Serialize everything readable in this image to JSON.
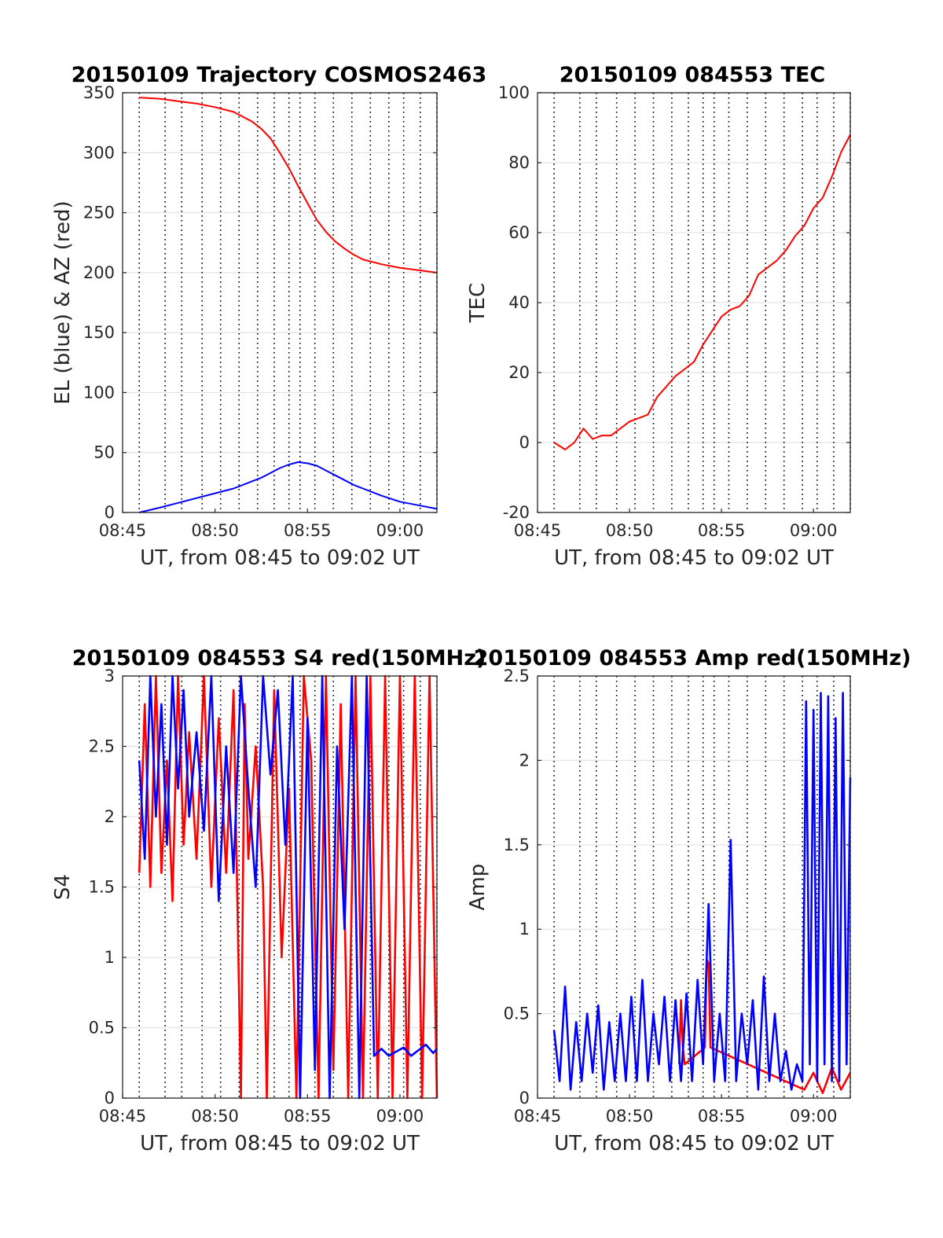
{
  "chart_data": [
    {
      "type": "line",
      "title": "20150109 Trajectory COSMOS2463",
      "xlabel": "UT, from 08:45 to 09:02 UT",
      "ylabel": "EL (blue) & AZ (red)",
      "x_tick_labels": [
        "08:45",
        "08:50",
        "08:55",
        "09:00"
      ],
      "x_ticks_min": [
        0,
        5,
        10,
        15
      ],
      "xlim_min": [
        0,
        17
      ],
      "ylim": [
        0,
        350
      ],
      "y_ticks": [
        0,
        50,
        100,
        150,
        200,
        250,
        300,
        350
      ],
      "vertical_dotted_lines_min": [
        0.9,
        2.3,
        3.2,
        4.3,
        5.3,
        6.3,
        7.3,
        8.2,
        9.0,
        9.6,
        10.4,
        11.4,
        12.4,
        13.4,
        14.4,
        15.2,
        16.1,
        17.0
      ],
      "series": [
        {
          "color": "#ff0000",
          "x_min": [
            0.9,
            2.0,
            3.0,
            4.0,
            5.0,
            6.0,
            7.0,
            7.5,
            8.0,
            8.5,
            9.0,
            9.5,
            10.0,
            10.5,
            11.0,
            11.5,
            12.0,
            12.5,
            13.0,
            14.0,
            15.0,
            16.0,
            17.0
          ],
          "values": [
            346,
            345,
            343,
            341,
            338,
            334,
            326,
            320,
            312,
            300,
            287,
            272,
            258,
            244,
            234,
            226,
            220,
            215,
            211,
            207,
            204,
            202,
            200
          ]
        },
        {
          "color": "#0000ff",
          "x_min": [
            0.9,
            2.0,
            3.0,
            4.0,
            5.0,
            6.0,
            7.0,
            7.5,
            8.0,
            8.5,
            9.0,
            9.5,
            10.0,
            10.5,
            11.0,
            11.5,
            12.0,
            12.5,
            13.0,
            14.0,
            15.0,
            16.0,
            17.0
          ],
          "values": [
            0,
            4,
            8,
            12,
            16,
            20,
            26,
            29,
            33,
            37,
            40,
            42,
            41,
            39,
            35,
            31,
            27,
            23,
            20,
            14,
            9,
            6,
            3
          ]
        }
      ]
    },
    {
      "type": "line",
      "title": "20150109 084553 TEC",
      "xlabel": "UT, from 08:45 to 09:02 UT",
      "ylabel": "TEC",
      "x_tick_labels": [
        "08:45",
        "08:50",
        "08:55",
        "09:00"
      ],
      "x_ticks_min": [
        0,
        5,
        10,
        15
      ],
      "xlim_min": [
        0,
        17
      ],
      "ylim": [
        -20,
        100
      ],
      "y_ticks": [
        -20,
        0,
        20,
        40,
        60,
        80,
        100
      ],
      "vertical_dotted_lines_min": [
        0.9,
        2.3,
        3.2,
        4.3,
        5.3,
        6.3,
        7.3,
        8.2,
        9.0,
        9.6,
        10.4,
        11.4,
        12.4,
        13.4,
        14.4,
        15.2,
        16.1,
        17.0
      ],
      "series": [
        {
          "color": "#ff0000",
          "x_min": [
            0.9,
            1.5,
            2.0,
            2.5,
            3.0,
            3.5,
            4.0,
            4.5,
            5.0,
            5.5,
            6.0,
            6.5,
            7.0,
            7.5,
            8.0,
            8.5,
            9.0,
            9.5,
            10.0,
            10.5,
            11.0,
            11.5,
            12.0,
            12.5,
            13.0,
            13.5,
            14.0,
            14.5,
            15.0,
            15.5,
            16.0,
            16.5,
            17.0
          ],
          "values": [
            0,
            -2,
            0,
            4,
            1,
            2,
            2,
            4,
            6,
            7,
            8,
            13,
            16,
            19,
            21,
            23,
            28,
            32,
            36,
            38,
            39,
            42,
            48,
            50,
            52,
            55,
            59,
            62,
            67,
            70,
            76,
            83,
            88
          ]
        }
      ]
    },
    {
      "type": "line",
      "title": "20150109 084553 S4 red(150MHz)",
      "xlabel": "UT, from 08:45 to 09:02 UT",
      "ylabel": "S4",
      "x_tick_labels": [
        "08:45",
        "08:50",
        "08:55",
        "09:00"
      ],
      "x_ticks_min": [
        0,
        5,
        10,
        15
      ],
      "xlim_min": [
        0,
        17
      ],
      "ylim": [
        0,
        3
      ],
      "y_ticks": [
        0,
        0.5,
        1,
        1.5,
        2,
        2.5,
        3
      ],
      "vertical_dotted_lines_min": [
        0.9,
        2.3,
        3.2,
        4.3,
        5.3,
        6.3,
        7.3,
        8.2,
        9.0,
        9.6,
        10.4,
        11.4,
        12.4,
        13.4,
        14.4,
        15.2,
        16.1,
        17.0
      ],
      "series": [
        {
          "color": "#ff0000",
          "x_min": [
            0.9,
            1.2,
            1.5,
            1.8,
            2.1,
            2.4,
            2.7,
            3.0,
            3.3,
            3.6,
            4.0,
            4.4,
            4.8,
            5.2,
            5.6,
            6.0,
            6.4,
            6.6,
            6.8,
            7.2,
            7.6,
            7.8,
            8.2,
            8.6,
            9.0,
            9.4,
            9.8,
            10.2,
            10.6,
            11.0,
            11.4,
            11.8,
            12.2,
            12.6,
            13.0,
            13.4,
            13.8,
            14.2,
            14.6,
            15.0,
            15.4,
            15.8,
            16.2,
            16.6,
            17.0
          ],
          "values": [
            1.6,
            2.8,
            1.5,
            3.0,
            1.6,
            2.4,
            1.4,
            3.0,
            1.8,
            2.6,
            1.7,
            3.0,
            1.5,
            2.7,
            1.6,
            2.9,
            0.0,
            2.8,
            1.7,
            2.5,
            1.5,
            0.0,
            2.9,
            1.0,
            2.2,
            0.0,
            3.0,
            2.4,
            0.0,
            3.0,
            0.2,
            2.8,
            0.0,
            3.0,
            0.0,
            3.0,
            0.0,
            3.0,
            0.0,
            3.0,
            0.0,
            3.0,
            0.0,
            3.0,
            0.0
          ]
        },
        {
          "color": "#0000ff",
          "x_min": [
            0.9,
            1.2,
            1.5,
            1.8,
            2.1,
            2.4,
            2.7,
            3.0,
            3.3,
            3.6,
            4.0,
            4.4,
            4.8,
            5.2,
            5.6,
            6.0,
            6.4,
            6.8,
            7.2,
            7.6,
            8.0,
            8.4,
            8.8,
            9.2,
            9.6,
            10.0,
            10.4,
            10.8,
            11.2,
            11.6,
            12.0,
            12.4,
            12.8,
            13.2,
            13.6,
            14.0,
            14.4,
            14.8,
            15.2,
            15.6,
            16.0,
            16.4,
            16.8,
            17.0
          ],
          "values": [
            2.4,
            1.7,
            3.0,
            2.0,
            2.8,
            1.8,
            3.0,
            2.2,
            2.9,
            2.0,
            2.6,
            1.9,
            3.0,
            1.4,
            2.5,
            1.6,
            3.0,
            2.2,
            1.5,
            3.0,
            2.3,
            2.9,
            1.8,
            3.0,
            0.0,
            2.7,
            0.2,
            3.0,
            0.0,
            2.5,
            1.2,
            3.0,
            0.0,
            3.0,
            0.3,
            0.35,
            0.3,
            0.33,
            0.36,
            0.3,
            0.34,
            0.38,
            0.32,
            0.35
          ]
        }
      ]
    },
    {
      "type": "line",
      "title": "20150109 084553 Amp red(150MHz)",
      "xlabel": "UT, from 08:45 to 09:02 UT",
      "ylabel": "Amp",
      "x_tick_labels": [
        "08:45",
        "08:50",
        "08:55",
        "09:00"
      ],
      "x_ticks_min": [
        0,
        5,
        10,
        15
      ],
      "xlim_min": [
        0,
        17
      ],
      "ylim": [
        0,
        2.5
      ],
      "y_ticks": [
        0,
        0.5,
        1,
        1.5,
        2,
        2.5
      ],
      "vertical_dotted_lines_min": [
        0.9,
        2.3,
        3.2,
        4.3,
        5.3,
        6.3,
        7.3,
        8.2,
        9.0,
        9.6,
        10.4,
        11.4,
        12.4,
        13.4,
        14.4,
        15.2,
        16.1,
        17.0
      ],
      "series": [
        {
          "color": "#ff0000",
          "x_min": [
            7.7,
            7.8,
            7.9,
            8.0,
            9.1,
            9.2,
            9.3,
            9.4,
            14.5,
            15.0,
            15.5,
            16.0,
            16.5,
            17.0
          ],
          "values": [
            0.2,
            0.58,
            0.3,
            0.2,
            0.3,
            0.82,
            0.8,
            0.3,
            0.05,
            0.15,
            0.03,
            0.18,
            0.05,
            0.15
          ]
        },
        {
          "color": "#0000ff",
          "x_min": [
            0.9,
            1.2,
            1.5,
            1.8,
            2.1,
            2.4,
            2.7,
            3.0,
            3.3,
            3.6,
            3.9,
            4.2,
            4.5,
            4.8,
            5.1,
            5.4,
            5.7,
            6.0,
            6.3,
            6.6,
            6.9,
            7.2,
            7.5,
            7.8,
            8.1,
            8.4,
            8.7,
            9.0,
            9.3,
            9.6,
            9.9,
            10.2,
            10.5,
            10.8,
            11.1,
            11.4,
            11.7,
            12.0,
            12.3,
            12.6,
            12.9,
            13.2,
            13.5,
            13.8,
            14.1,
            14.4,
            14.6,
            14.8,
            15.0,
            15.2,
            15.4,
            15.6,
            15.8,
            16.0,
            16.2,
            16.4,
            16.6,
            16.8,
            17.0
          ],
          "values": [
            0.4,
            0.1,
            0.66,
            0.05,
            0.45,
            0.1,
            0.5,
            0.15,
            0.55,
            0.05,
            0.45,
            0.1,
            0.5,
            0.1,
            0.6,
            0.1,
            0.7,
            0.1,
            0.5,
            0.2,
            0.6,
            0.1,
            0.58,
            0.1,
            0.62,
            0.1,
            0.7,
            0.2,
            1.15,
            0.1,
            0.5,
            0.1,
            1.53,
            0.1,
            0.5,
            0.2,
            0.58,
            0.05,
            0.72,
            0.1,
            0.5,
            0.1,
            0.28,
            0.05,
            0.2,
            0.1,
            2.35,
            0.2,
            2.3,
            0.1,
            2.4,
            0.2,
            2.38,
            0.1,
            2.25,
            0.1,
            2.4,
            0.2,
            1.9
          ]
        }
      ]
    }
  ]
}
